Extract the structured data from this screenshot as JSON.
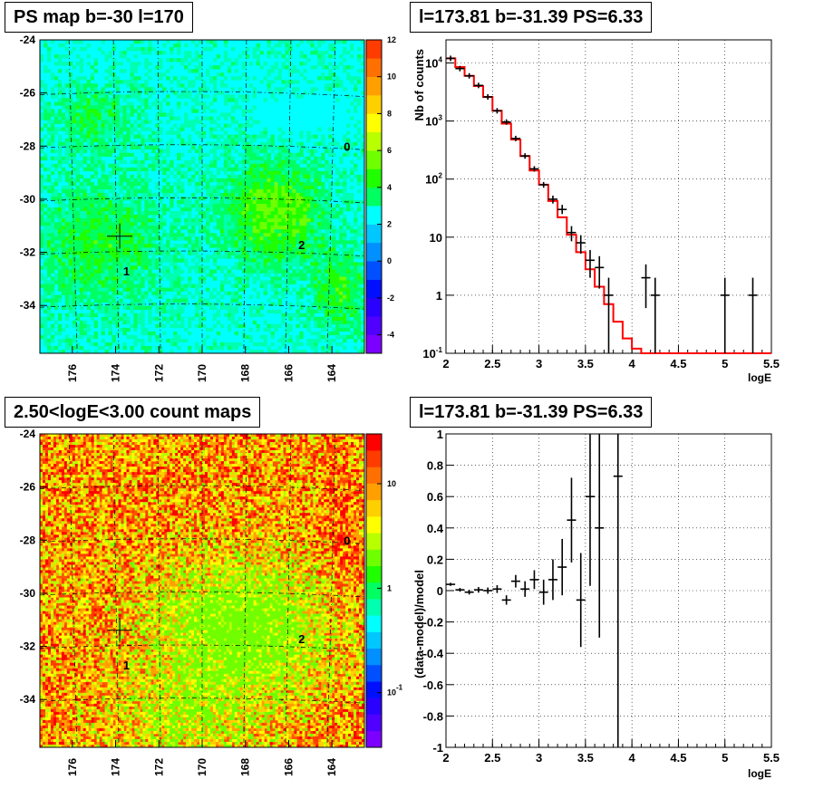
{
  "panels": {
    "tl": {
      "title": "PS map b=-30 l=170"
    },
    "tr": {
      "title": "l=173.81 b=-31.39 PS=6.33"
    },
    "bl": {
      "title": "2.50<logE<3.00 count maps"
    },
    "br": {
      "title": "l=173.81 b=-31.39 PS=6.33"
    }
  },
  "colors": {
    "palette": [
      "#7b00ff",
      "#5000ff",
      "#2a00ff",
      "#0010ff",
      "#0050ff",
      "#0090ff",
      "#00c8ff",
      "#00ffff",
      "#00ffb0",
      "#00ff60",
      "#20ff00",
      "#70ff00",
      "#b8ff00",
      "#ffff00",
      "#ffd000",
      "#ffa000",
      "#ff7000",
      "#ff3c00",
      "#ff0000"
    ],
    "model_line": "#ff0000",
    "data_marker": "#000000"
  },
  "chart_data": [
    {
      "type": "heatmap",
      "name": "ps-map",
      "x_ticks": [
        "176",
        "174",
        "172",
        "170",
        "168",
        "166",
        "164"
      ],
      "y_ticks": [
        "-24",
        "-26",
        "-28",
        "-30",
        "-32",
        "-34"
      ],
      "xlim": [
        177.5,
        162.5
      ],
      "ylim": [
        -35.8,
        -24
      ],
      "colorbar_ticks": [
        "12",
        "10",
        "8",
        "6",
        "4",
        "2",
        "0",
        "-2",
        "-4"
      ],
      "colorbar_range": [
        -5,
        12
      ],
      "sources": [
        {
          "label": "0",
          "l": 163.3,
          "b": -28.0
        },
        {
          "label": "1",
          "l": 173.5,
          "b": -32.7
        },
        {
          "label": "2",
          "l": 165.4,
          "b": -31.7
        }
      ],
      "marker": {
        "l": 173.81,
        "b": -31.39
      }
    },
    {
      "type": "line",
      "name": "spectrum",
      "xlabel": "logE",
      "ylabel": "Nb of counts",
      "x_ticks": [
        "2",
        "2.5",
        "3",
        "3.5",
        "4",
        "4.5",
        "5",
        "5.5"
      ],
      "y_ticks": [
        "10^-1",
        "1",
        "10",
        "10^2",
        "10^3",
        "10^4"
      ],
      "y_scale": "log",
      "xlim": [
        2,
        5.5
      ],
      "ylim": [
        0.1,
        25000
      ],
      "grid": true,
      "model_edges": [
        2.0,
        2.1,
        2.2,
        2.3,
        2.4,
        2.5,
        2.6,
        2.7,
        2.8,
        2.9,
        3.0,
        3.1,
        3.2,
        3.3,
        3.4,
        3.5,
        3.6,
        3.7,
        3.8,
        3.9,
        4.0,
        4.1,
        4.2,
        4.3,
        4.4,
        4.5,
        4.6,
        4.7,
        4.8,
        4.9,
        5.0,
        5.1,
        5.2,
        5.3,
        5.4,
        5.5
      ],
      "model_values": [
        12000,
        8500,
        6000,
        4000,
        2600,
        1500,
        900,
        480,
        250,
        140,
        80,
        42,
        22,
        11,
        5.5,
        2.8,
        1.4,
        0.7,
        0.35,
        0.18,
        0.12,
        0.1,
        0.1,
        0.1,
        0.1,
        0.1,
        0.1,
        0.1,
        0.1,
        0.1,
        0.1,
        0.1,
        0.1,
        0.1,
        0.1
      ],
      "data_points": [
        {
          "x": 2.05,
          "y": 12000
        },
        {
          "x": 2.15,
          "y": 8000
        },
        {
          "x": 2.25,
          "y": 6000
        },
        {
          "x": 2.35,
          "y": 4100
        },
        {
          "x": 2.45,
          "y": 2600
        },
        {
          "x": 2.55,
          "y": 1500
        },
        {
          "x": 2.65,
          "y": 960
        },
        {
          "x": 2.75,
          "y": 500
        },
        {
          "x": 2.85,
          "y": 250
        },
        {
          "x": 2.95,
          "y": 150
        },
        {
          "x": 3.05,
          "y": 80,
          "lo": 71,
          "hi": 89
        },
        {
          "x": 3.15,
          "y": 45,
          "lo": 38,
          "hi": 52
        },
        {
          "x": 3.25,
          "y": 30,
          "lo": 25,
          "hi": 36
        },
        {
          "x": 3.35,
          "y": 12,
          "lo": 8.5,
          "hi": 15.5
        },
        {
          "x": 3.45,
          "y": 8,
          "lo": 5.2,
          "hi": 10.8
        },
        {
          "x": 3.55,
          "y": 4,
          "lo": 2.0,
          "hi": 6.0
        },
        {
          "x": 3.65,
          "y": 3,
          "lo": 1.3,
          "hi": 4.7
        },
        {
          "x": 3.75,
          "y": 1,
          "lo": 0.1,
          "hi": 2.0
        },
        {
          "x": 4.15,
          "y": 2,
          "lo": 0.6,
          "hi": 3.4
        },
        {
          "x": 4.25,
          "y": 1,
          "lo": 0.1,
          "hi": 2.0
        },
        {
          "x": 5.0,
          "y": 1,
          "lo": 0.1,
          "hi": 2.0
        },
        {
          "x": 5.3,
          "y": 1,
          "lo": 0.1,
          "hi": 2.0
        }
      ]
    },
    {
      "type": "heatmap",
      "name": "count-map",
      "x_ticks": [
        "176",
        "174",
        "172",
        "170",
        "168",
        "166",
        "164"
      ],
      "y_ticks": [
        "-24",
        "-26",
        "-28",
        "-30",
        "-32",
        "-34"
      ],
      "xlim": [
        177.5,
        162.5
      ],
      "ylim": [
        -35.8,
        -24
      ],
      "colorbar_ticks": [
        "10",
        "1",
        "10^-1"
      ],
      "colorbar_scale": "log",
      "colorbar_range": [
        0.03,
        30
      ],
      "sources": [
        {
          "label": "0",
          "l": 163.3,
          "b": -28.0
        },
        {
          "label": "1",
          "l": 173.5,
          "b": -32.7
        },
        {
          "label": "2",
          "l": 165.4,
          "b": -31.7
        }
      ],
      "marker": {
        "l": 173.81,
        "b": -31.39
      }
    },
    {
      "type": "scatter",
      "name": "residuals",
      "xlabel": "logE",
      "ylabel": "(data-model)/model",
      "x_ticks": [
        "2",
        "2.5",
        "3",
        "3.5",
        "4",
        "4.5",
        "5",
        "5.5"
      ],
      "y_ticks": [
        "-1",
        "-0.8",
        "-0.6",
        "-0.4",
        "-0.2",
        "0",
        "0.2",
        "0.4",
        "0.6",
        "0.8",
        "1"
      ],
      "xlim": [
        2,
        5.5
      ],
      "ylim": [
        -1,
        1
      ],
      "grid": true,
      "data_points": [
        {
          "x": 2.05,
          "y": 0.04,
          "err": 0.01
        },
        {
          "x": 2.15,
          "y": 0.005,
          "err": 0.012
        },
        {
          "x": 2.25,
          "y": -0.01,
          "err": 0.015
        },
        {
          "x": 2.35,
          "y": 0.005,
          "err": 0.018
        },
        {
          "x": 2.45,
          "y": 0.0,
          "err": 0.02
        },
        {
          "x": 2.55,
          "y": 0.01,
          "err": 0.025
        },
        {
          "x": 2.65,
          "y": -0.06,
          "err": 0.03
        },
        {
          "x": 2.75,
          "y": 0.06,
          "err": 0.04
        },
        {
          "x": 2.85,
          "y": 0.01,
          "err": 0.05
        },
        {
          "x": 2.95,
          "y": 0.07,
          "err": 0.06
        },
        {
          "x": 3.05,
          "y": -0.01,
          "err": 0.08
        },
        {
          "x": 3.15,
          "y": 0.07,
          "err": 0.13
        },
        {
          "x": 3.25,
          "y": 0.15,
          "err": 0.18
        },
        {
          "x": 3.35,
          "y": 0.45,
          "err": 0.27
        },
        {
          "x": 3.45,
          "y": -0.06,
          "err": 0.3
        },
        {
          "x": 3.55,
          "y": 0.6,
          "err": 0.57
        },
        {
          "x": 3.65,
          "y": 0.4,
          "err": 0.7
        },
        {
          "x": 3.85,
          "y": 0.73,
          "err": 1.8
        }
      ]
    }
  ]
}
